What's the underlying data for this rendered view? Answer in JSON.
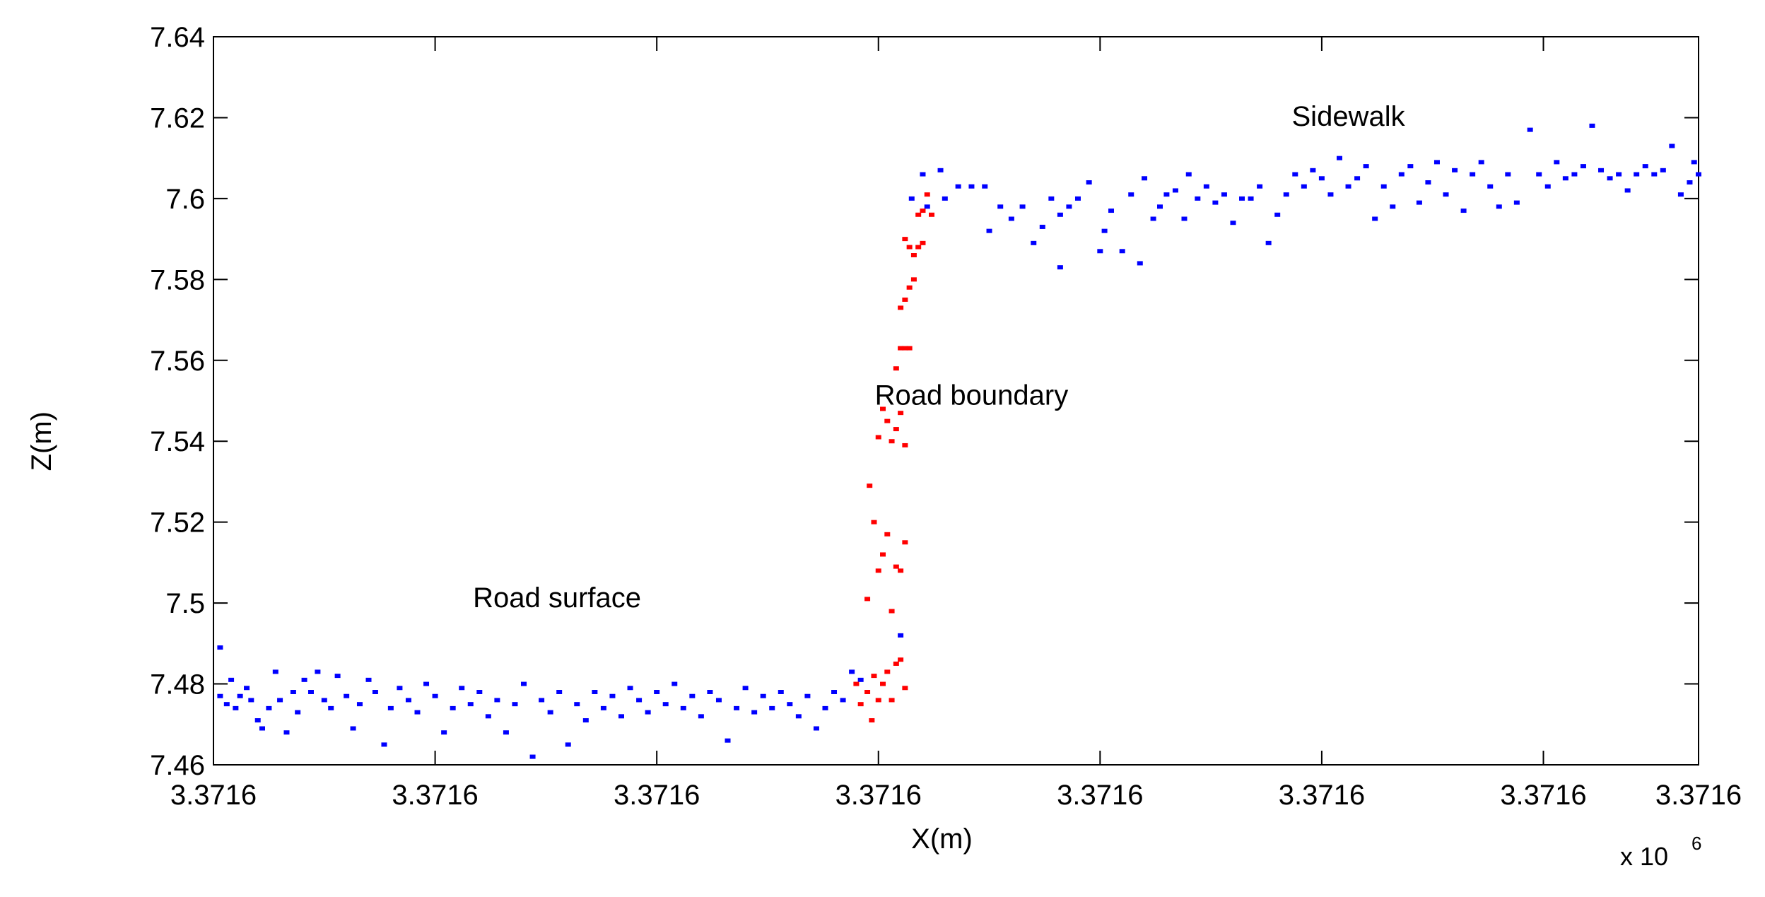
{
  "chart_data": {
    "type": "scatter",
    "title": "",
    "xlabel": "X(m)",
    "ylabel": "Z(m)",
    "x_exponent_label": "x 10",
    "x_exponent_power": "6",
    "xlim": [
      0,
      6.7
    ],
    "ylim": [
      7.46,
      7.64
    ],
    "x_ticks": [
      0,
      1,
      2,
      3,
      4,
      5,
      6,
      6.7
    ],
    "x_tick_labels": [
      "3.3716",
      "3.3716",
      "3.3716",
      "3.3716",
      "3.3716",
      "3.3716",
      "3.3716",
      "3.3716"
    ],
    "y_ticks": [
      7.46,
      7.48,
      7.5,
      7.52,
      7.54,
      7.56,
      7.58,
      7.6,
      7.62,
      7.64
    ],
    "y_tick_labels": [
      "7.46",
      "7.48",
      "7.5",
      "7.52",
      "7.54",
      "7.56",
      "7.58",
      "7.6",
      "7.62",
      "7.64"
    ],
    "grid": false,
    "annotations": [
      {
        "text": "Road surface",
        "x": 1.55,
        "y": 7.499
      },
      {
        "text": "Road boundary",
        "x": 3.42,
        "y": 7.549
      },
      {
        "text": "Sidewalk",
        "x": 5.12,
        "y": 7.618
      }
    ],
    "series": [
      {
        "color": "#0000ff",
        "points": [
          [
            0.03,
            7.489
          ],
          [
            0.03,
            7.477
          ],
          [
            0.06,
            7.475
          ],
          [
            0.08,
            7.481
          ],
          [
            0.1,
            7.474
          ],
          [
            0.12,
            7.477
          ],
          [
            0.15,
            7.479
          ],
          [
            0.17,
            7.476
          ],
          [
            0.2,
            7.471
          ],
          [
            0.22,
            7.469
          ],
          [
            0.25,
            7.474
          ],
          [
            0.28,
            7.483
          ],
          [
            0.3,
            7.476
          ],
          [
            0.33,
            7.468
          ],
          [
            0.36,
            7.478
          ],
          [
            0.38,
            7.473
          ],
          [
            0.41,
            7.481
          ],
          [
            0.44,
            7.478
          ],
          [
            0.47,
            7.483
          ],
          [
            0.5,
            7.476
          ],
          [
            0.53,
            7.474
          ],
          [
            0.56,
            7.482
          ],
          [
            0.6,
            7.477
          ],
          [
            0.63,
            7.469
          ],
          [
            0.66,
            7.475
          ],
          [
            0.7,
            7.481
          ],
          [
            0.73,
            7.478
          ],
          [
            0.77,
            7.465
          ],
          [
            0.8,
            7.474
          ],
          [
            0.84,
            7.479
          ],
          [
            0.88,
            7.476
          ],
          [
            0.92,
            7.473
          ],
          [
            0.96,
            7.48
          ],
          [
            1.0,
            7.477
          ],
          [
            1.04,
            7.468
          ],
          [
            1.08,
            7.474
          ],
          [
            1.12,
            7.479
          ],
          [
            1.16,
            7.475
          ],
          [
            1.2,
            7.478
          ],
          [
            1.24,
            7.472
          ],
          [
            1.28,
            7.476
          ],
          [
            1.32,
            7.468
          ],
          [
            1.36,
            7.475
          ],
          [
            1.4,
            7.48
          ],
          [
            1.44,
            7.462
          ],
          [
            1.48,
            7.476
          ],
          [
            1.52,
            7.473
          ],
          [
            1.56,
            7.478
          ],
          [
            1.6,
            7.465
          ],
          [
            1.64,
            7.475
          ],
          [
            1.68,
            7.471
          ],
          [
            1.72,
            7.478
          ],
          [
            1.76,
            7.474
          ],
          [
            1.8,
            7.477
          ],
          [
            1.84,
            7.472
          ],
          [
            1.88,
            7.479
          ],
          [
            1.92,
            7.476
          ],
          [
            1.96,
            7.473
          ],
          [
            2.0,
            7.478
          ],
          [
            2.04,
            7.475
          ],
          [
            2.08,
            7.48
          ],
          [
            2.12,
            7.474
          ],
          [
            2.16,
            7.477
          ],
          [
            2.2,
            7.472
          ],
          [
            2.24,
            7.478
          ],
          [
            2.28,
            7.476
          ],
          [
            2.32,
            7.466
          ],
          [
            2.36,
            7.474
          ],
          [
            2.4,
            7.479
          ],
          [
            2.44,
            7.473
          ],
          [
            2.48,
            7.477
          ],
          [
            2.52,
            7.474
          ],
          [
            2.56,
            7.478
          ],
          [
            2.6,
            7.475
          ],
          [
            2.64,
            7.472
          ],
          [
            2.68,
            7.477
          ],
          [
            2.72,
            7.469
          ],
          [
            2.76,
            7.474
          ],
          [
            2.8,
            7.478
          ],
          [
            2.84,
            7.476
          ],
          [
            2.88,
            7.483
          ],
          [
            2.92,
            7.481
          ],
          [
            3.1,
            7.492
          ],
          [
            3.15,
            7.6
          ],
          [
            3.2,
            7.606
          ],
          [
            3.22,
            7.598
          ],
          [
            3.28,
            7.607
          ],
          [
            3.3,
            7.6
          ],
          [
            3.36,
            7.603
          ],
          [
            3.42,
            7.603
          ],
          [
            3.48,
            7.603
          ],
          [
            3.5,
            7.592
          ],
          [
            3.55,
            7.598
          ],
          [
            3.6,
            7.595
          ],
          [
            3.65,
            7.598
          ],
          [
            3.7,
            7.589
          ],
          [
            3.74,
            7.593
          ],
          [
            3.78,
            7.6
          ],
          [
            3.82,
            7.583
          ],
          [
            3.82,
            7.596
          ],
          [
            3.86,
            7.598
          ],
          [
            3.9,
            7.6
          ],
          [
            3.95,
            7.604
          ],
          [
            4.0,
            7.587
          ],
          [
            4.02,
            7.592
          ],
          [
            4.05,
            7.597
          ],
          [
            4.1,
            7.587
          ],
          [
            4.14,
            7.601
          ],
          [
            4.18,
            7.584
          ],
          [
            4.2,
            7.605
          ],
          [
            4.24,
            7.595
          ],
          [
            4.27,
            7.598
          ],
          [
            4.3,
            7.601
          ],
          [
            4.34,
            7.602
          ],
          [
            4.38,
            7.595
          ],
          [
            4.4,
            7.606
          ],
          [
            4.44,
            7.6
          ],
          [
            4.48,
            7.603
          ],
          [
            4.52,
            7.599
          ],
          [
            4.56,
            7.601
          ],
          [
            4.6,
            7.594
          ],
          [
            4.64,
            7.6
          ],
          [
            4.68,
            7.6
          ],
          [
            4.72,
            7.603
          ],
          [
            4.76,
            7.589
          ],
          [
            4.8,
            7.596
          ],
          [
            4.84,
            7.601
          ],
          [
            4.88,
            7.606
          ],
          [
            4.92,
            7.603
          ],
          [
            4.96,
            7.607
          ],
          [
            5.0,
            7.605
          ],
          [
            5.04,
            7.601
          ],
          [
            5.08,
            7.61
          ],
          [
            5.12,
            7.603
          ],
          [
            5.16,
            7.605
          ],
          [
            5.2,
            7.608
          ],
          [
            5.24,
            7.595
          ],
          [
            5.28,
            7.603
          ],
          [
            5.32,
            7.598
          ],
          [
            5.36,
            7.606
          ],
          [
            5.4,
            7.608
          ],
          [
            5.44,
            7.599
          ],
          [
            5.48,
            7.604
          ],
          [
            5.52,
            7.609
          ],
          [
            5.56,
            7.601
          ],
          [
            5.6,
            7.607
          ],
          [
            5.64,
            7.597
          ],
          [
            5.68,
            7.606
          ],
          [
            5.72,
            7.609
          ],
          [
            5.76,
            7.603
          ],
          [
            5.8,
            7.598
          ],
          [
            5.84,
            7.606
          ],
          [
            5.88,
            7.599
          ],
          [
            5.94,
            7.617
          ],
          [
            5.98,
            7.606
          ],
          [
            6.02,
            7.603
          ],
          [
            6.06,
            7.609
          ],
          [
            6.1,
            7.605
          ],
          [
            6.14,
            7.606
          ],
          [
            6.18,
            7.608
          ],
          [
            6.22,
            7.618
          ],
          [
            6.26,
            7.607
          ],
          [
            6.3,
            7.605
          ],
          [
            6.34,
            7.606
          ],
          [
            6.38,
            7.602
          ],
          [
            6.42,
            7.606
          ],
          [
            6.46,
            7.608
          ],
          [
            6.5,
            7.606
          ],
          [
            6.54,
            7.607
          ],
          [
            6.58,
            7.613
          ],
          [
            6.62,
            7.601
          ],
          [
            6.66,
            7.604
          ],
          [
            6.68,
            7.609
          ],
          [
            6.7,
            7.606
          ]
        ]
      },
      {
        "color": "#ff0000",
        "points": [
          [
            2.9,
            7.48
          ],
          [
            2.92,
            7.475
          ],
          [
            2.95,
            7.478
          ],
          [
            2.97,
            7.471
          ],
          [
            2.98,
            7.482
          ],
          [
            3.0,
            7.476
          ],
          [
            3.02,
            7.48
          ],
          [
            3.04,
            7.483
          ],
          [
            3.06,
            7.476
          ],
          [
            3.08,
            7.485
          ],
          [
            3.1,
            7.486
          ],
          [
            3.12,
            7.479
          ],
          [
            2.95,
            7.501
          ],
          [
            2.96,
            7.529
          ],
          [
            2.98,
            7.52
          ],
          [
            3.0,
            7.508
          ],
          [
            3.02,
            7.512
          ],
          [
            3.04,
            7.517
          ],
          [
            3.06,
            7.498
          ],
          [
            3.08,
            7.509
          ],
          [
            3.1,
            7.508
          ],
          [
            3.12,
            7.515
          ],
          [
            3.0,
            7.541
          ],
          [
            3.02,
            7.548
          ],
          [
            3.04,
            7.545
          ],
          [
            3.06,
            7.54
          ],
          [
            3.08,
            7.543
          ],
          [
            3.1,
            7.547
          ],
          [
            3.12,
            7.539
          ],
          [
            3.08,
            7.558
          ],
          [
            3.1,
            7.563
          ],
          [
            3.12,
            7.563
          ],
          [
            3.14,
            7.563
          ],
          [
            3.1,
            7.573
          ],
          [
            3.12,
            7.575
          ],
          [
            3.14,
            7.578
          ],
          [
            3.16,
            7.58
          ],
          [
            3.12,
            7.59
          ],
          [
            3.14,
            7.588
          ],
          [
            3.16,
            7.586
          ],
          [
            3.18,
            7.588
          ],
          [
            3.2,
            7.589
          ],
          [
            3.18,
            7.596
          ],
          [
            3.2,
            7.597
          ],
          [
            3.22,
            7.601
          ],
          [
            3.24,
            7.596
          ]
        ]
      }
    ]
  }
}
